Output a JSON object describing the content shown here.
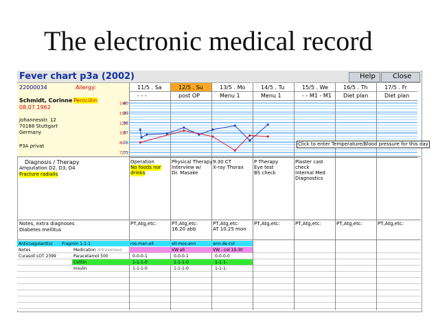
{
  "title": "The electronic medical record",
  "window": {
    "title": "Fever chart p3a (2002)",
    "help": "Help",
    "close": "Close"
  },
  "patient": {
    "id": "22000034",
    "allergy_label": "Allergy:",
    "allergy": "Penicillin",
    "name": "Schmidt, Corinne",
    "dob": "08.07.1962",
    "address": [
      "Johannesstr. 12",
      "70188 Stuttgart",
      "Germany"
    ],
    "ward": "P3A privat"
  },
  "days": [
    "11/5 . Sa",
    "12/5 . Su",
    "13/5 . Mo",
    "14/5 . Tu",
    "15/5 . We",
    "16/5 . Th",
    "17/5 . Fr"
  ],
  "menus": [
    "- - -",
    "post OP",
    "Menu 1",
    "Menu 1",
    "- - M1 - M1",
    "Diet plan",
    "Diet plan"
  ],
  "chart_data": {
    "type": "line",
    "ylim": [
      35,
      40
    ],
    "yticks": [
      35,
      36,
      37,
      38,
      39,
      40
    ],
    "pulse_ticks": [
      "72",
      "80",
      "100",
      "120",
      "130",
      "140"
    ],
    "xlim": [
      0,
      7
    ],
    "tooltip": "Click to enter Temperature/Blood pressure for this day",
    "series": [
      {
        "color": "#1f3fc0",
        "x": [
          0.27,
          0.3,
          0.43,
          0.92,
          1.33,
          1.7,
          2.03,
          2.57,
          2.93,
          3.37
        ],
        "values": [
          37.3,
          36.5,
          36.8,
          36.9,
          37.5,
          36.8,
          37.3,
          37.7,
          36.2,
          37.8
        ]
      },
      {
        "color": "#d02030",
        "x": [
          0.27,
          1.33,
          2.03,
          2.57,
          2.93,
          3.37
        ],
        "values": [
          36.0,
          37.2,
          36.6,
          35.2,
          36.7,
          36.6
        ]
      }
    ]
  },
  "diagnosis": {
    "label": "Diagnosis / Therapy",
    "items": [
      "Amputation D2, D3, D4",
      "Fracture radialis"
    ]
  },
  "day_notes": [
    [
      "Operation",
      "No foods nor",
      "drinks"
    ],
    [
      "Physical Therapy",
      "Interview w/",
      "Dr. Masake"
    ],
    [
      "9.30 CT",
      "X-ray Thorax"
    ],
    [
      "P Therapy",
      "Eye test",
      "BS check"
    ],
    [
      "Plaster cast",
      "check",
      "Internal Med",
      "Diagnostics"
    ]
  ],
  "extra": {
    "label": "Notes, extra diagnoses",
    "items": [
      "Diabetes mellitus"
    ],
    "days": [
      [
        "PT,Atg,etc:"
      ],
      [
        "PT,Atg,etc:",
        "16.20 abb"
      ],
      [
        "PT,Atg,etc:",
        "AT 10.25 mon"
      ],
      [
        "PT,Atg,etc:"
      ],
      [
        "PT,Atg,etc:"
      ],
      [
        "PT,Atg,etc:"
      ],
      [
        "PT,Atg,etc:"
      ]
    ]
  },
  "medication": {
    "anticoag": "Anticoagulant(s)",
    "fragmin": "Fragmin 1-1-1",
    "anticoag_days": [
      "ros-man-ell",
      "ell-mos-ann",
      "ann-de-col"
    ],
    "notes": "Notes",
    "med_label": "Medication",
    "iv": "Intravenous",
    "iv_days": [
      "",
      "VW ell",
      "VW - col 19.30"
    ],
    "lot": "Curasoll LOT 2399",
    "rows": [
      {
        "name": "Paracetamol 500",
        "days": [
          "0-0-0-1",
          "0-0-0-1",
          "0-0-0-0"
        ]
      },
      {
        "name": "Colitin",
        "days": [
          "1-1-1-0",
          "1-1-1-0",
          "1-1-1-"
        ]
      },
      {
        "name": "Insulin",
        "days": [
          "1-1-1-0",
          "1-1-1-0",
          "1-1-1-"
        ]
      }
    ]
  }
}
